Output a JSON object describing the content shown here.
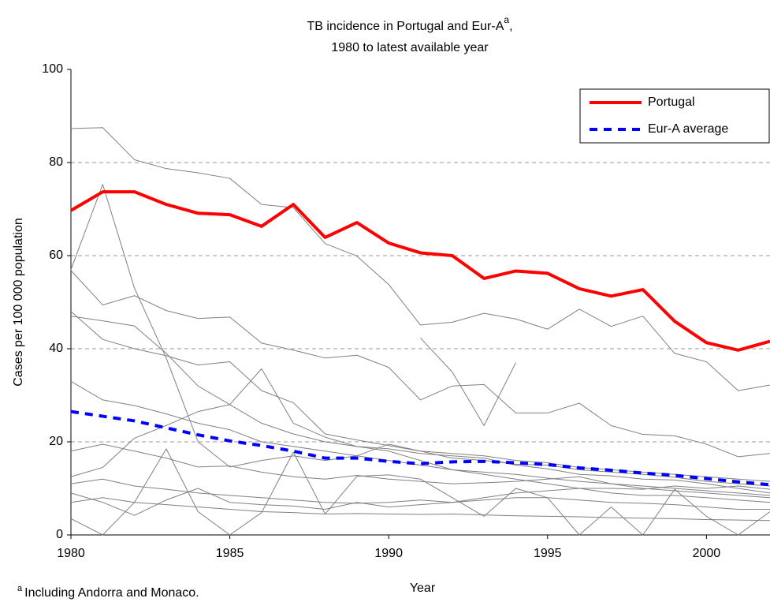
{
  "chart_data": {
    "type": "line",
    "title": {
      "text": "TB incidence in Portugal and Eur-A",
      "superscript": "a",
      "suffix": ","
    },
    "subtitle": "1980 to latest available year",
    "x_label": "Year",
    "y_label": "Cases per 100 000 population",
    "footnote": {
      "marker": "a",
      "text": "Including Andorra and Monaco."
    },
    "x": [
      1980,
      1981,
      1982,
      1983,
      1984,
      1985,
      1986,
      1987,
      1988,
      1989,
      1990,
      1991,
      1992,
      1993,
      1994,
      1995,
      1996,
      1997,
      1998,
      1999,
      2000,
      2001,
      2002
    ],
    "xlim": [
      1980,
      2002
    ],
    "xticks": [
      1980,
      1985,
      1990,
      1995,
      2000
    ],
    "ylim": [
      0,
      100
    ],
    "yticks": [
      0,
      20,
      40,
      60,
      80,
      100
    ],
    "grid": true,
    "legend": "top-right",
    "series": [
      {
        "color": "#808080",
        "values": [
          87.3,
          87.5,
          80.6,
          78.7,
          77.8,
          76.6,
          71,
          70.3,
          62.6,
          59.9,
          53.8,
          45.1,
          45.7,
          47.6,
          46.4,
          44.2,
          48.5,
          44.8,
          47,
          39,
          37.2,
          31,
          32.2
        ]
      },
      {
        "color": "#808080",
        "values": [
          57,
          75.3,
          53,
          38,
          20,
          14.6,
          16,
          17,
          16,
          17,
          19.5,
          18,
          17.5,
          17,
          16,
          15.5,
          14.5,
          14,
          13.5,
          13,
          12.5,
          12,
          11.5
        ]
      },
      {
        "color": "#808080",
        "values": [
          56.8,
          49.4,
          51.4,
          48.2,
          46.5,
          46.8,
          41.2,
          39.7,
          38,
          38.6,
          36,
          29,
          32,
          32.3,
          26.2,
          26.2,
          28.3,
          23.5,
          21.6,
          21.3,
          19.5,
          16.8,
          17.5
        ]
      },
      {
        "color": "#808080",
        "values": [
          48,
          42,
          40,
          38.5,
          36.5,
          37.2,
          31,
          28.4,
          21.7,
          20.4,
          19.2,
          18,
          16.5,
          16,
          15.2,
          15,
          14,
          13.5,
          13,
          12.4,
          11.5,
          11,
          10.5
        ]
      },
      {
        "color": "#808080",
        "values": [
          47,
          46,
          44.9,
          39,
          32,
          28,
          24,
          21.7,
          20,
          19,
          18.5,
          17.5,
          17,
          16.5,
          15,
          14.2,
          13,
          12.7,
          12,
          11.8,
          11,
          10,
          9
        ]
      },
      {
        "color": "#808080",
        "values": [
          33,
          29,
          27.8,
          26,
          24,
          22.6,
          20,
          19,
          18,
          17,
          16,
          15,
          14,
          13.5,
          13,
          12.2,
          11.5,
          11,
          10.5,
          10,
          9.5,
          9,
          8.5
        ]
      },
      {
        "color": "#808080",
        "values": [
          18,
          19.5,
          18,
          16.5,
          14.6,
          14.8,
          13.5,
          12.5,
          12,
          12.8,
          12,
          11.5,
          11,
          11.2,
          11.5,
          12,
          12.5,
          11,
          10,
          9.5,
          9,
          8.5,
          8
        ]
      },
      {
        "color": "#808080",
        "values": [
          12.5,
          14.5,
          20.8,
          23.5,
          26.5,
          28,
          35.7,
          24,
          21,
          19,
          18,
          16,
          14,
          13,
          12,
          11,
          10,
          9,
          8.5,
          8.5,
          8,
          7.5,
          7
        ]
      },
      {
        "color": "#808080",
        "values": [
          11,
          12,
          10.5,
          9.8,
          9,
          8.5,
          8,
          7.5,
          7,
          6.8,
          7,
          7.5,
          7,
          7.5,
          8,
          8,
          7.5,
          7,
          6.8,
          6.5,
          6,
          5.5,
          5.5
        ]
      },
      {
        "color": "#808080",
        "values": [
          7,
          8,
          7,
          6.5,
          6,
          5.5,
          5,
          4.8,
          4.5,
          4.6,
          4.5,
          4.4,
          4.5,
          4.3,
          4.1,
          4,
          3.9,
          3.7,
          3.6,
          3.5,
          3.3,
          3.2,
          3.1
        ]
      },
      {
        "color": "#808080",
        "values": [
          3.5,
          0,
          7,
          18.5,
          5,
          0,
          4.8,
          17.8,
          4.5,
          12.6,
          12.9,
          12,
          8,
          4,
          10,
          8,
          0,
          6,
          0,
          9.8,
          4,
          0,
          5
        ]
      },
      {
        "color": "#808080",
        "values": [
          9,
          7,
          4.2,
          7.5,
          10,
          7,
          6.5,
          6.2,
          5.5,
          7,
          6,
          6.5,
          7,
          8,
          9,
          9.5,
          10,
          10,
          9.8,
          10.5,
          10,
          10.5,
          9.8
        ]
      },
      {
        "color": "#808080",
        "values": [
          null,
          null,
          null,
          null,
          null,
          null,
          null,
          null,
          null,
          null,
          null,
          42.3,
          35,
          23.5,
          37,
          null,
          null,
          null,
          null,
          null,
          null,
          null,
          null
        ]
      },
      {
        "name": "Portugal",
        "color": "#ff0000",
        "values": [
          69.7,
          73.7,
          73.7,
          71,
          69.1,
          68.8,
          66.3,
          71,
          63.9,
          67.1,
          62.7,
          60.6,
          60,
          55.1,
          56.7,
          56.2,
          52.9,
          51.3,
          52.7,
          45.9,
          41.3,
          39.7,
          41.6
        ]
      },
      {
        "name": "Eur-A average",
        "color": "#0000ff",
        "dashed": true,
        "values": [
          26.5,
          25.5,
          24.5,
          23,
          21.5,
          20.2,
          19.2,
          18,
          16.5,
          16.5,
          15.8,
          15.3,
          15.7,
          15.8,
          15.5,
          15.1,
          14.4,
          13.9,
          13.3,
          12.8,
          12.1,
          11.4,
          10.8
        ]
      }
    ]
  }
}
